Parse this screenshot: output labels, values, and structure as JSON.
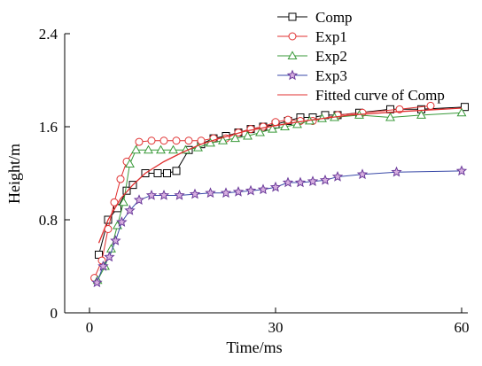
{
  "chart_data": {
    "type": "line",
    "xlabel": "Time/ms",
    "ylabel": "Height/m",
    "xlim": [
      -4,
      61
    ],
    "ylim": [
      0,
      2.4
    ],
    "x_ticks": [
      0,
      30,
      60
    ],
    "x_tick_labels": [
      "0",
      "30",
      "60"
    ],
    "y_ticks": [
      0,
      0.8,
      1.6,
      2.4
    ],
    "y_tick_labels": [
      "0",
      "0.8",
      "1.6",
      "2.4"
    ],
    "grid": false,
    "legend_position": "top-right",
    "series": [
      {
        "name": "Comp",
        "color": "#000000",
        "marker": "square",
        "x": [
          1.5,
          3,
          4.5,
          6,
          7,
          9,
          11,
          12.5,
          14,
          16,
          18,
          20,
          22,
          24,
          26,
          28,
          30,
          32,
          34,
          36,
          38,
          40,
          43.5,
          48.5,
          53.5,
          60.5
        ],
        "y": [
          0.5,
          0.8,
          0.9,
          1.05,
          1.1,
          1.2,
          1.2,
          1.2,
          1.22,
          1.4,
          1.45,
          1.5,
          1.52,
          1.55,
          1.58,
          1.6,
          1.62,
          1.65,
          1.68,
          1.68,
          1.7,
          1.7,
          1.72,
          1.75,
          1.75,
          1.77
        ]
      },
      {
        "name": "Exp1",
        "color": "#e03030",
        "marker": "circle",
        "x": [
          0.8,
          2,
          3,
          4,
          5,
          6,
          8,
          10,
          12,
          14,
          16,
          18,
          20,
          22,
          24,
          26,
          28,
          30,
          32,
          34,
          36,
          40,
          44,
          50,
          55
        ],
        "y": [
          0.3,
          0.45,
          0.72,
          0.95,
          1.15,
          1.3,
          1.47,
          1.48,
          1.48,
          1.48,
          1.48,
          1.48,
          1.5,
          1.5,
          1.55,
          1.58,
          1.6,
          1.64,
          1.66,
          1.65,
          1.65,
          1.7,
          1.72,
          1.75,
          1.78
        ]
      },
      {
        "name": "Exp2",
        "color": "#3a9a3a",
        "marker": "triangle-up",
        "x": [
          1.3,
          2.5,
          3.5,
          4.5,
          5.5,
          6.5,
          7.5,
          9.5,
          11.5,
          13.5,
          15.5,
          17.5,
          19.5,
          21.5,
          23.5,
          25.5,
          27.5,
          29.5,
          31.5,
          33.5,
          35.5,
          37.5,
          39.5,
          43.5,
          48.5,
          53.5,
          60
        ],
        "y": [
          0.28,
          0.4,
          0.55,
          0.75,
          0.95,
          1.28,
          1.4,
          1.4,
          1.4,
          1.4,
          1.4,
          1.42,
          1.46,
          1.48,
          1.5,
          1.52,
          1.55,
          1.58,
          1.6,
          1.62,
          1.65,
          1.67,
          1.68,
          1.7,
          1.68,
          1.7,
          1.72
        ]
      },
      {
        "name": "Exp3",
        "color": "#3a4aa8",
        "marker": "star",
        "x": [
          1.2,
          2.2,
          3.2,
          4.2,
          5.2,
          6.5,
          8,
          10,
          12,
          14.5,
          17,
          19.5,
          22,
          24,
          26,
          28,
          30,
          32,
          34,
          36,
          38,
          40,
          44,
          49.5,
          60
        ],
        "y": [
          0.26,
          0.4,
          0.48,
          0.62,
          0.78,
          0.88,
          0.97,
          1.01,
          1.01,
          1.01,
          1.02,
          1.03,
          1.03,
          1.04,
          1.05,
          1.06,
          1.08,
          1.12,
          1.12,
          1.13,
          1.14,
          1.17,
          1.19,
          1.21,
          1.22
        ]
      },
      {
        "name": "Fitted curve of Comp",
        "color": "#e03030",
        "marker": "none",
        "x": [
          1.5,
          3,
          5,
          7,
          9,
          12,
          15,
          18,
          21,
          25,
          30,
          36,
          42,
          50,
          60
        ],
        "y": [
          0.6,
          0.8,
          0.98,
          1.1,
          1.2,
          1.3,
          1.38,
          1.45,
          1.5,
          1.56,
          1.61,
          1.66,
          1.7,
          1.73,
          1.76
        ]
      }
    ]
  }
}
